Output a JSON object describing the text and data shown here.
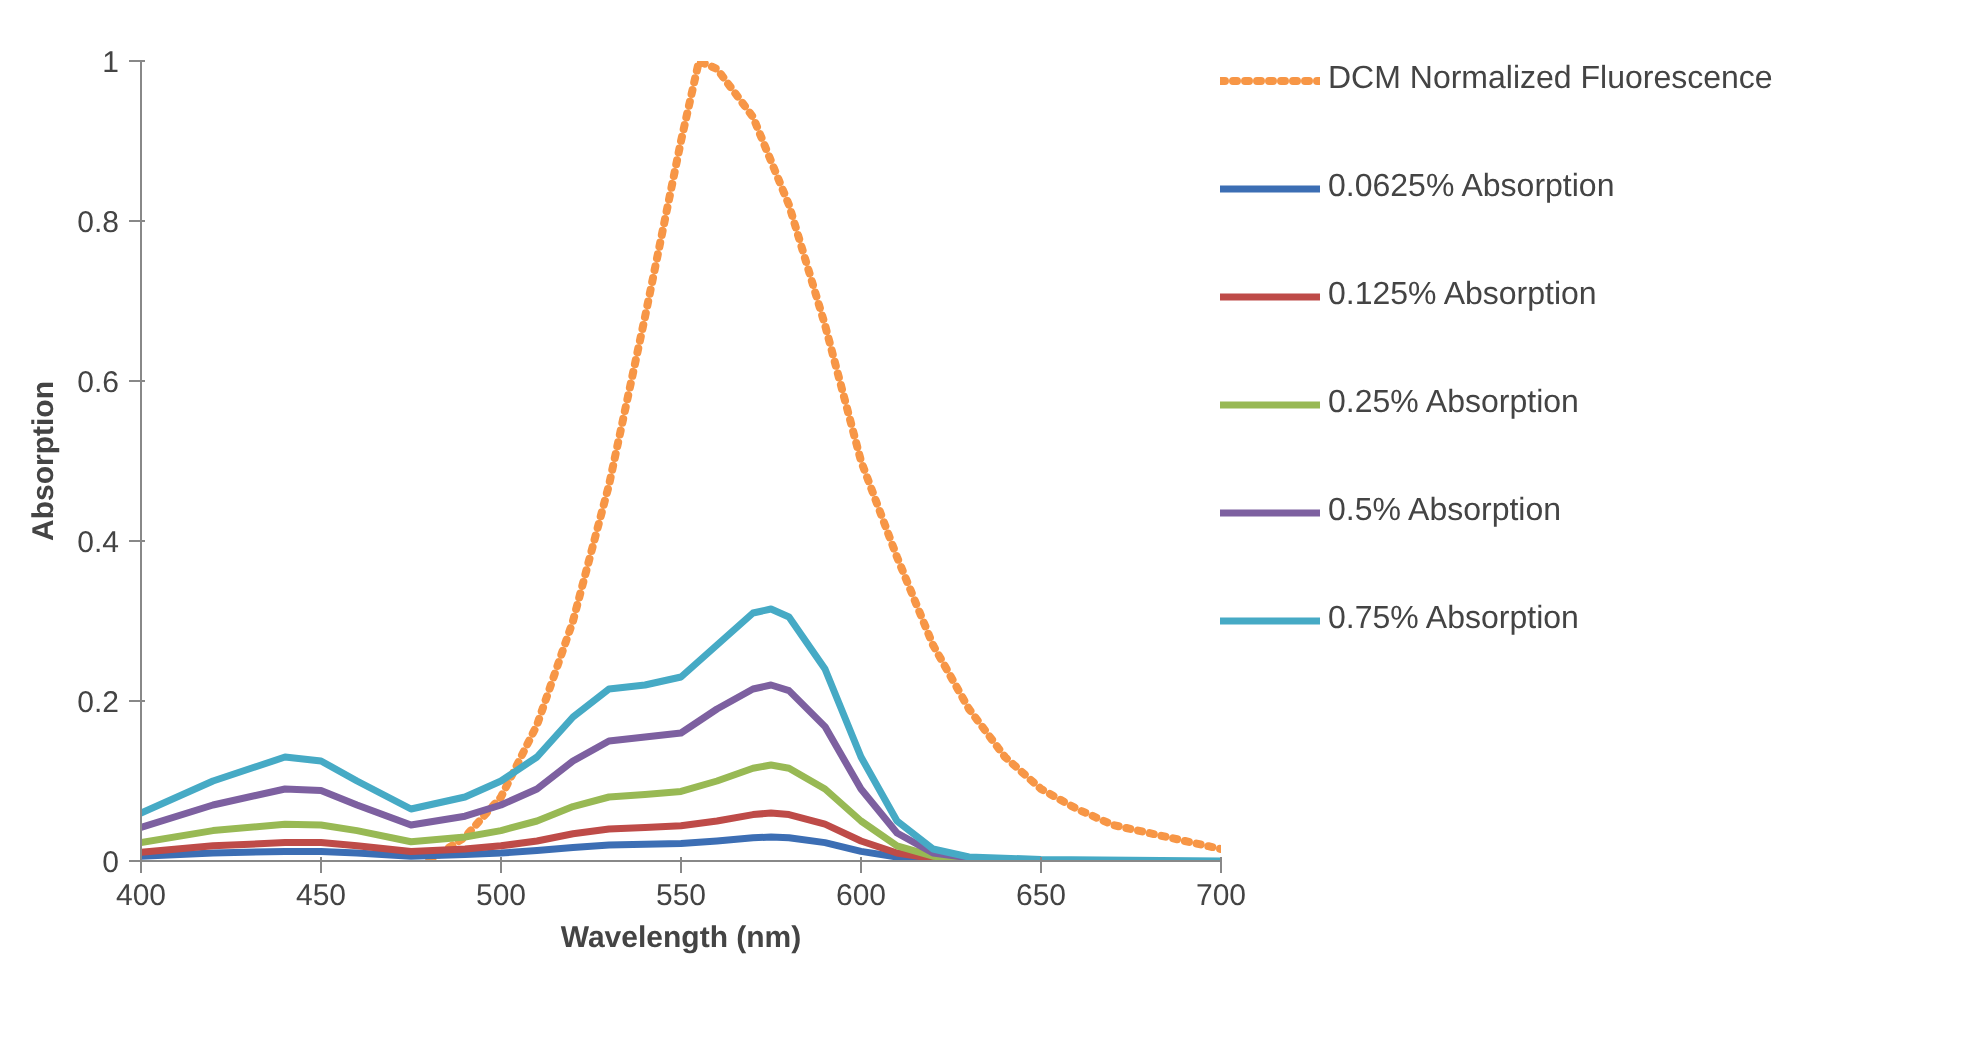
{
  "chart_data": {
    "type": "line",
    "xlabel": "Wavelength (nm)",
    "ylabel": "Absorption",
    "xlim": [
      400,
      700
    ],
    "xticks": [
      400,
      450,
      500,
      550,
      600,
      650,
      700
    ],
    "ylim": [
      0,
      1
    ],
    "yticks": [
      0,
      0.2,
      0.4,
      0.6,
      0.8,
      1
    ],
    "grid": false,
    "legend": "right",
    "marker": "none",
    "series": [
      {
        "name": "DCM Normalized Fluorescence",
        "color": "#f79646",
        "line_style": "dotted",
        "x": [
          480,
          490,
          500,
          510,
          520,
          530,
          540,
          550,
          555,
          560,
          570,
          580,
          590,
          600,
          610,
          620,
          630,
          640,
          650,
          660,
          670,
          680,
          690,
          700
        ],
        "values": [
          0,
          0.03,
          0.08,
          0.17,
          0.3,
          0.47,
          0.68,
          0.9,
          1,
          0.99,
          0.93,
          0.82,
          0.67,
          0.5,
          0.38,
          0.27,
          0.19,
          0.13,
          0.09,
          0.065,
          0.045,
          0.035,
          0.025,
          0.015
        ]
      },
      {
        "name": "0.0625% Absorption",
        "color": "#3c6eb4",
        "line_style": "solid",
        "x": [
          400,
          420,
          440,
          450,
          460,
          475,
          490,
          500,
          510,
          520,
          530,
          540,
          550,
          560,
          570,
          575,
          580,
          590,
          600,
          610,
          620,
          630
        ],
        "values": [
          0.006,
          0.01,
          0.012,
          0.012,
          0.01,
          0.006,
          0.008,
          0.01,
          0.013,
          0.017,
          0.02,
          0.021,
          0.022,
          0.025,
          0.029,
          0.03,
          0.029,
          0.023,
          0.012,
          0.005,
          0.002,
          0.001
        ]
      },
      {
        "name": "0.125% Absorption",
        "color": "#be4b48",
        "line_style": "solid",
        "x": [
          400,
          420,
          440,
          450,
          460,
          475,
          490,
          500,
          510,
          520,
          530,
          540,
          550,
          560,
          570,
          575,
          580,
          590,
          600,
          610,
          620,
          630
        ],
        "values": [
          0.011,
          0.019,
          0.023,
          0.023,
          0.019,
          0.012,
          0.015,
          0.019,
          0.025,
          0.034,
          0.04,
          0.042,
          0.044,
          0.05,
          0.058,
          0.06,
          0.058,
          0.046,
          0.025,
          0.01,
          0.003,
          0.001
        ]
      },
      {
        "name": "0.25% Absorption",
        "color": "#98b954",
        "line_style": "solid",
        "x": [
          400,
          420,
          440,
          450,
          460,
          475,
          490,
          500,
          510,
          520,
          530,
          540,
          550,
          560,
          570,
          575,
          580,
          590,
          600,
          610,
          620,
          630
        ],
        "values": [
          0.023,
          0.038,
          0.046,
          0.045,
          0.038,
          0.024,
          0.03,
          0.038,
          0.05,
          0.068,
          0.08,
          0.083,
          0.087,
          0.1,
          0.116,
          0.12,
          0.116,
          0.09,
          0.05,
          0.019,
          0.006,
          0.002
        ]
      },
      {
        "name": "0.5% Absorption",
        "color": "#7d60a0",
        "line_style": "solid",
        "x": [
          400,
          420,
          440,
          450,
          460,
          475,
          490,
          500,
          510,
          520,
          530,
          540,
          550,
          560,
          570,
          575,
          580,
          590,
          600,
          610,
          620,
          630
        ],
        "values": [
          0.042,
          0.07,
          0.09,
          0.088,
          0.07,
          0.045,
          0.056,
          0.07,
          0.09,
          0.125,
          0.15,
          0.155,
          0.16,
          0.19,
          0.215,
          0.22,
          0.213,
          0.168,
          0.09,
          0.035,
          0.01,
          0.004
        ]
      },
      {
        "name": "0.75% Absorption",
        "color": "#46aac5",
        "line_style": "solid",
        "x": [
          400,
          420,
          440,
          450,
          460,
          475,
          490,
          500,
          510,
          520,
          530,
          540,
          550,
          560,
          570,
          575,
          580,
          590,
          600,
          610,
          620,
          630,
          650,
          700
        ],
        "values": [
          0.06,
          0.1,
          0.13,
          0.125,
          0.1,
          0.065,
          0.08,
          0.1,
          0.13,
          0.18,
          0.215,
          0.22,
          0.23,
          0.27,
          0.31,
          0.315,
          0.305,
          0.24,
          0.13,
          0.05,
          0.015,
          0.005,
          0.002,
          0
        ]
      }
    ]
  }
}
